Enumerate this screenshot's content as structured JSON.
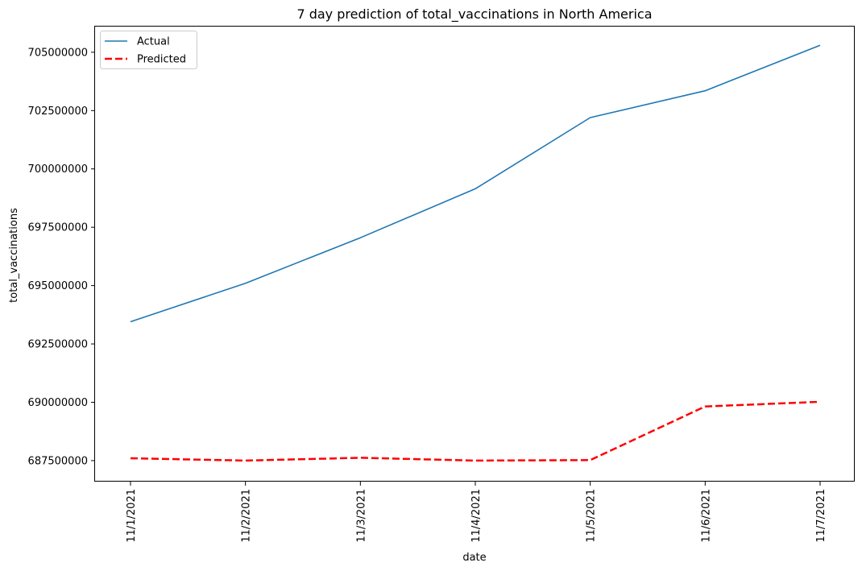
{
  "chart_data": {
    "type": "line",
    "title": "7 day prediction of total_vaccinations in North America",
    "xlabel": "date",
    "ylabel": "total_vaccinations",
    "categories": [
      "11/1/2021",
      "11/2/2021",
      "11/3/2021",
      "11/4/2021",
      "11/5/2021",
      "11/6/2021",
      "11/7/2021"
    ],
    "ylim": [
      686600000,
      706100000
    ],
    "yticks": [
      687500000,
      690000000,
      692500000,
      695000000,
      697500000,
      700000000,
      702500000,
      705000000
    ],
    "ytick_labels": [
      "687500000",
      "690000000",
      "692500000",
      "695000000",
      "697500000",
      "700000000",
      "702500000",
      "705000000"
    ],
    "series": [
      {
        "name": "Actual",
        "color": "#1f77b4",
        "style": "solid",
        "values": [
          693450000,
          695100000,
          697050000,
          699150000,
          702200000,
          703350000,
          705300000
        ]
      },
      {
        "name": "Predicted",
        "color": "#ff0000",
        "style": "dashed",
        "values": [
          687600000,
          687500000,
          687620000,
          687500000,
          687520000,
          689820000,
          690020000
        ]
      }
    ],
    "legend_position": "upper-left",
    "grid": false
  }
}
